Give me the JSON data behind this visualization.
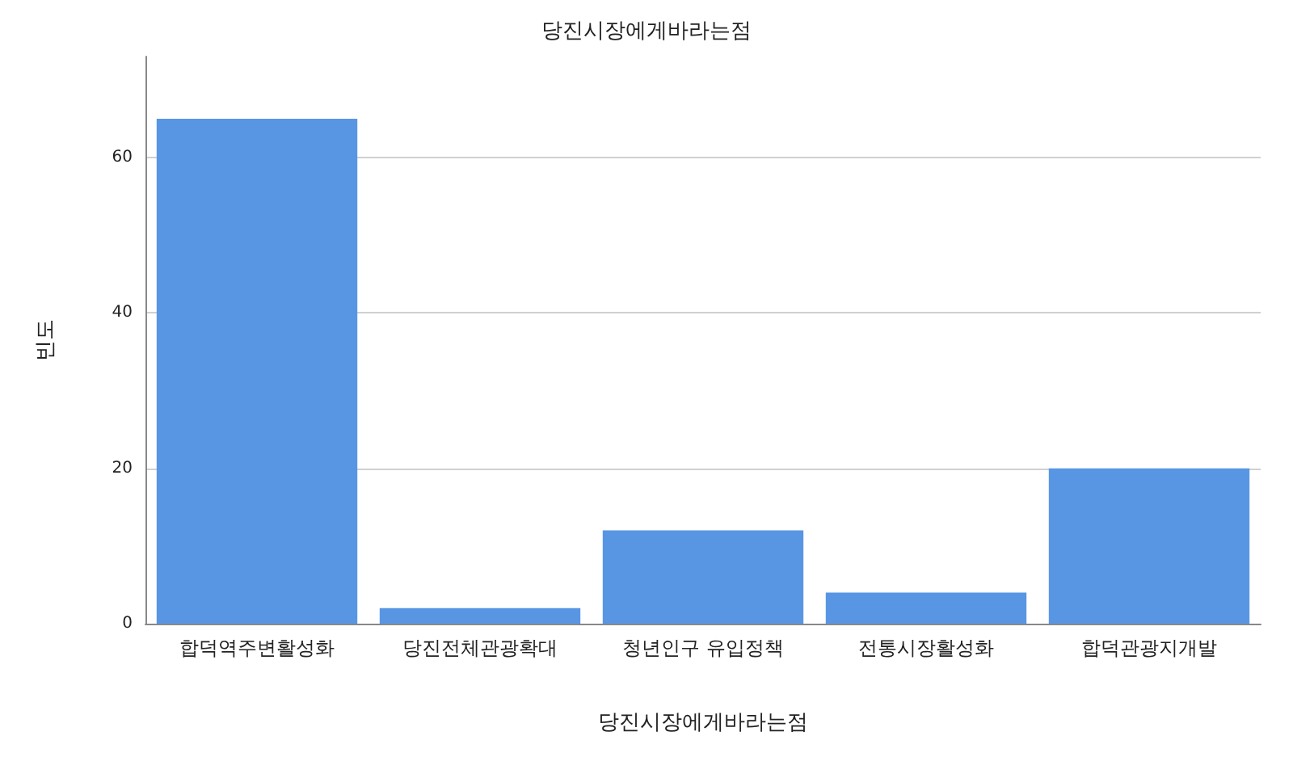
{
  "chart_data": {
    "type": "bar",
    "title": "당진시장에게바라는점",
    "xlabel": "당진시장에게바라는점",
    "ylabel": "빈도",
    "categories": [
      "합덕역주변활성화",
      "당진전체관광확대",
      "청년인구 유입정책",
      "전통시장활성화",
      "합덕관광지개발"
    ],
    "values": [
      65,
      2,
      12,
      4,
      20
    ],
    "color": "#5896e4",
    "ylim": [
      0,
      73
    ],
    "yticks": [
      0,
      20,
      40,
      60
    ],
    "grid": "y"
  }
}
